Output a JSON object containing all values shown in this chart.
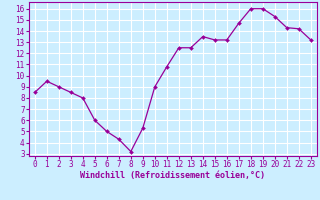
{
  "x": [
    0,
    1,
    2,
    3,
    4,
    5,
    6,
    7,
    8,
    9,
    10,
    11,
    12,
    13,
    14,
    15,
    16,
    17,
    18,
    19,
    20,
    21,
    22,
    23
  ],
  "y": [
    8.5,
    9.5,
    9.0,
    8.5,
    8.0,
    6.0,
    5.0,
    4.3,
    3.2,
    5.3,
    9.0,
    10.8,
    12.5,
    12.5,
    13.5,
    13.2,
    13.2,
    14.7,
    16.0,
    16.0,
    15.3,
    14.3,
    14.2,
    13.2
  ],
  "xlabel": "Windchill (Refroidissement éolien,°C)",
  "xlim": [
    -0.5,
    23.5
  ],
  "ylim": [
    2.8,
    16.6
  ],
  "yticks": [
    3,
    4,
    5,
    6,
    7,
    8,
    9,
    10,
    11,
    12,
    13,
    14,
    15,
    16
  ],
  "xticks": [
    0,
    1,
    2,
    3,
    4,
    5,
    6,
    7,
    8,
    9,
    10,
    11,
    12,
    13,
    14,
    15,
    16,
    17,
    18,
    19,
    20,
    21,
    22,
    23
  ],
  "line_color": "#990099",
  "marker_color": "#990099",
  "bg_color": "#cceeff",
  "grid_color": "#ffffff",
  "label_color": "#990099",
  "tick_fontsize": 5.5,
  "xlabel_fontsize": 6.0
}
